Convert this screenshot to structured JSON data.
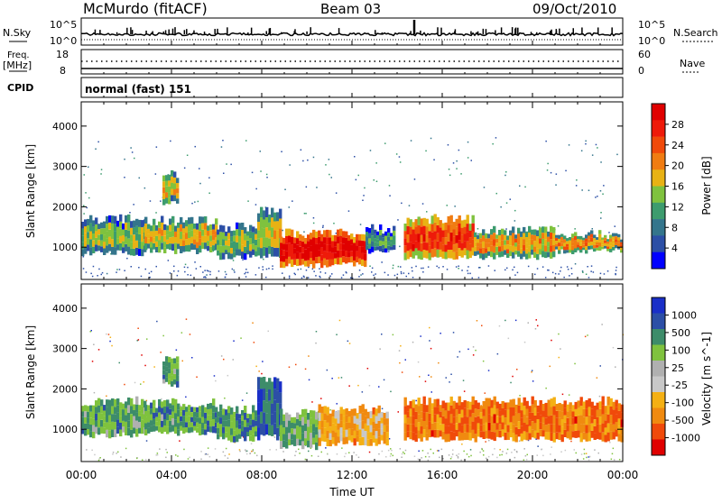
{
  "header": {
    "station": "McMurdo (fitACF)",
    "beam": "Beam 03",
    "date": "09/Oct/2010"
  },
  "sky_panel": {
    "left_label": "N.Sky",
    "left_top_tick": "10^5",
    "left_bottom_tick": "10^0",
    "right_top_tick": "10^5",
    "right_bottom_tick": "10^0",
    "right_label": "N.Search"
  },
  "freq_panel": {
    "left_label_1": "Freq.",
    "left_label_2": "[MHz]",
    "left_top_tick": "18",
    "left_bottom_tick": "8",
    "right_top_tick": "60",
    "right_bottom_tick": "0",
    "right_label": "Nave"
  },
  "cpid_panel": {
    "label": "CPID",
    "mode": "normal (fast) 151"
  },
  "colors": {
    "power_scale": [
      "#0000ff",
      "#2c4fa6",
      "#34758c",
      "#3d9c6e",
      "#7fc23e",
      "#e8b214",
      "#f07c12",
      "#f04a0a",
      "#ee1a0a",
      "#e00000"
    ],
    "velocity_scale": [
      "#e00000",
      "#f04a0a",
      "#f08a10",
      "#f4b014",
      "#c8c8c8",
      "#b0b0b0",
      "#7fc23e",
      "#3d8c6a",
      "#2c4fa6",
      "#1a2fc8"
    ]
  },
  "chart_data": [
    {
      "type": "heatmap",
      "panel": "power",
      "ylabel": "Slant Range [km]",
      "y_ticks": [
        "1000",
        "2000",
        "3000",
        "4000"
      ],
      "ylim": [
        200,
        4600
      ],
      "xlim": [
        0,
        24
      ],
      "colorbar": {
        "label": "Power [dB]",
        "ticks": [
          "4",
          "8",
          "12",
          "16",
          "20",
          "24",
          "28"
        ]
      },
      "bands": [
        {
          "x0": 0.0,
          "x1": 2.8,
          "y0": 850,
          "y1": 1700,
          "level": 0.45
        },
        {
          "x0": 2.8,
          "x1": 6.0,
          "y0": 900,
          "y1": 1650,
          "level": 0.55
        },
        {
          "x0": 6.0,
          "x1": 7.8,
          "y0": 750,
          "y1": 1500,
          "level": 0.45
        },
        {
          "x0": 7.8,
          "x1": 8.8,
          "y0": 800,
          "y1": 1900,
          "level": 0.5
        },
        {
          "x0": 8.8,
          "x1": 12.6,
          "y0": 550,
          "y1": 1350,
          "level": 0.92
        },
        {
          "x0": 12.6,
          "x1": 13.8,
          "y0": 900,
          "y1": 1450,
          "level": 0.35
        },
        {
          "x0": 14.3,
          "x1": 17.4,
          "y0": 750,
          "y1": 1700,
          "level": 0.8
        },
        {
          "x0": 17.4,
          "x1": 21.0,
          "y0": 750,
          "y1": 1400,
          "level": 0.6
        },
        {
          "x0": 21.0,
          "x1": 24.0,
          "y0": 900,
          "y1": 1300,
          "level": 0.62
        },
        {
          "x0": 3.6,
          "x1": 4.3,
          "y0": 2100,
          "y1": 2800,
          "level": 0.55
        }
      ]
    },
    {
      "type": "heatmap",
      "panel": "velocity",
      "ylabel": "Slant Range [km]",
      "xlabel": "Time UT",
      "x_ticks": [
        "00:00",
        "04:00",
        "08:00",
        "12:00",
        "16:00",
        "20:00",
        "00:00"
      ],
      "y_ticks": [
        "1000",
        "2000",
        "3000",
        "4000"
      ],
      "ylim": [
        200,
        4600
      ],
      "xlim": [
        0,
        24
      ],
      "colorbar": {
        "label": "Velocity [m s^-1]",
        "ticks": [
          "1000",
          "500",
          "100",
          "25",
          "-25",
          "-100",
          "-500",
          "-1000"
        ]
      },
      "bands": [
        {
          "x0": 0.0,
          "x1": 2.8,
          "y0": 850,
          "y1": 1700,
          "level": 0.7
        },
        {
          "x0": 2.8,
          "x1": 6.0,
          "y0": 900,
          "y1": 1650,
          "level": 0.72
        },
        {
          "x0": 6.0,
          "x1": 7.8,
          "y0": 750,
          "y1": 1500,
          "level": 0.72
        },
        {
          "x0": 7.8,
          "x1": 8.8,
          "y0": 800,
          "y1": 2200,
          "level": 0.85
        },
        {
          "x0": 8.8,
          "x1": 10.5,
          "y0": 550,
          "y1": 1400,
          "level": 0.68
        },
        {
          "x0": 10.5,
          "x1": 13.5,
          "y0": 650,
          "y1": 1500,
          "level": 0.32
        },
        {
          "x0": 14.3,
          "x1": 24.0,
          "y0": 750,
          "y1": 1700,
          "level": 0.22
        },
        {
          "x0": 3.6,
          "x1": 4.3,
          "y0": 2100,
          "y1": 2800,
          "level": 0.7
        }
      ]
    }
  ]
}
